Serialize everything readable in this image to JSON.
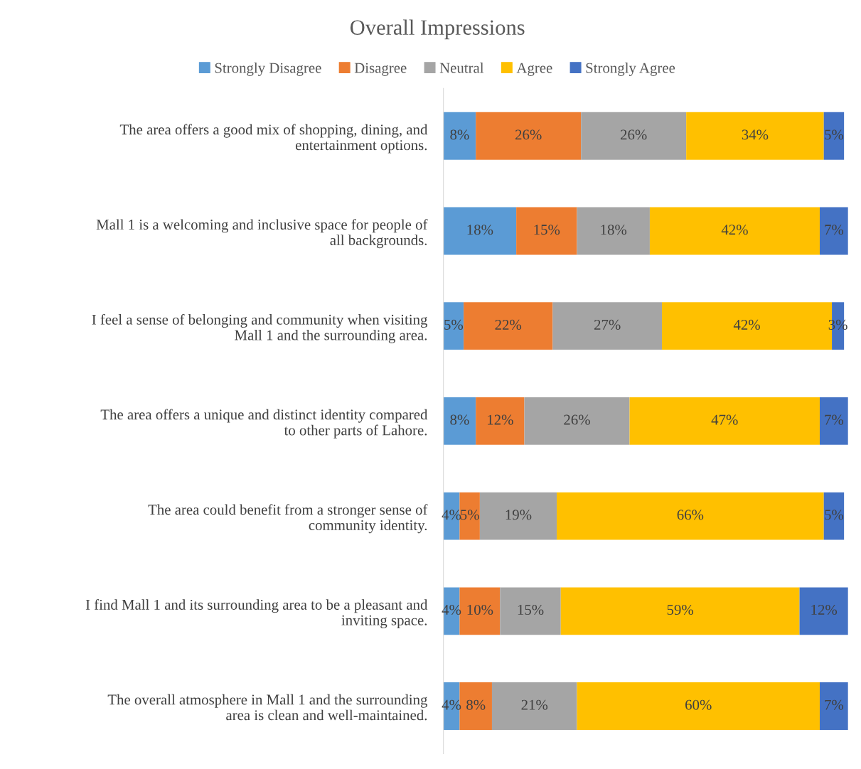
{
  "chart_data": {
    "type": "bar",
    "orientation": "horizontal",
    "stacked": true,
    "title": "Overall Impressions",
    "legend": "top",
    "grid": false,
    "tick_labels": "y",
    "categories": [
      "The area offers a good mix of shopping, dining, and\nentertainment options.",
      "Mall 1 is a welcoming and inclusive space for people of\nall backgrounds.",
      "I feel a sense of belonging and community when visiting\nMall 1 and the surrounding area.",
      "The area offers a unique and distinct identity compared\nto other parts of Lahore.",
      "The area could benefit from a stronger sense of\ncommunity identity.",
      "I find Mall 1 and its surrounding area to be a pleasant and\ninviting space.",
      "The overall atmosphere in Mall 1 and the surrounding\narea is clean and well-maintained."
    ],
    "series": [
      {
        "name": "Strongly Disagree",
        "color": "#5b9bd5",
        "values": [
          8,
          18,
          5,
          8,
          4,
          4,
          4
        ],
        "value_labels": [
          "8%",
          "18%",
          "5%",
          "8%",
          "4%",
          "4%",
          "4%"
        ]
      },
      {
        "name": "Disagree",
        "color": "#ed7d31",
        "values": [
          26,
          15,
          22,
          12,
          5,
          10,
          8
        ],
        "value_labels": [
          "26%",
          "15%",
          "22%",
          "12%",
          "5%",
          "10%",
          "8%"
        ]
      },
      {
        "name": "Neutral",
        "color": "#a5a5a5",
        "values": [
          26,
          18,
          27,
          26,
          19,
          15,
          21
        ],
        "value_labels": [
          "26%",
          "18%",
          "27%",
          "26%",
          "19%",
          "15%",
          "21%"
        ]
      },
      {
        "name": "Agree",
        "color": "#ffc000",
        "values": [
          34,
          42,
          42,
          47,
          66,
          59,
          60
        ],
        "value_labels": [
          "34%",
          "42%",
          "42%",
          "47%",
          "66%",
          "59%",
          "60%"
        ]
      },
      {
        "name": "Strongly Agree",
        "color": "#4472c4",
        "values": [
          5,
          7,
          3,
          7,
          5,
          12,
          7
        ],
        "value_labels": [
          "5%",
          "7%",
          "3%",
          "7%",
          "5%",
          "12%",
          "7%"
        ]
      }
    ]
  }
}
